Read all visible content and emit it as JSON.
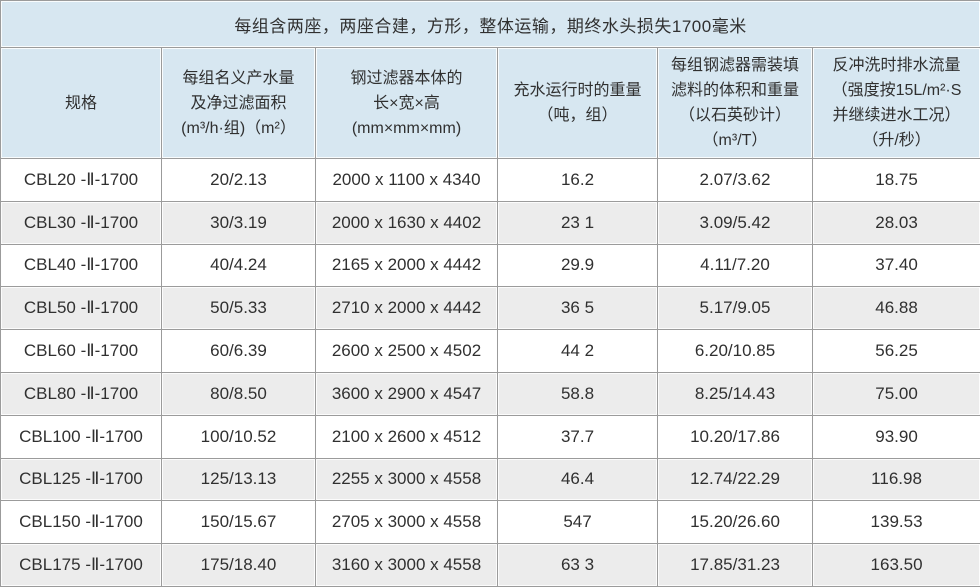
{
  "table": {
    "title": "每组含两座，两座合建，方形，整体运输，期终水头损失1700毫米",
    "columns": [
      {
        "id": "spec",
        "lines": [
          "规格"
        ]
      },
      {
        "id": "nominal-output-filter-area",
        "lines": [
          "每组名义产水量",
          "及净过滤面积",
          "(m³/h·组)（m²）"
        ]
      },
      {
        "id": "body-dimensions",
        "lines": [
          "钢过滤器本体的",
          "长×宽×高",
          "(mm×mm×mm)"
        ]
      },
      {
        "id": "water-filled-weight",
        "lines": [
          "充水运行时的重量",
          "（吨，组）"
        ]
      },
      {
        "id": "media-volume-weight",
        "lines": [
          "每组钢滤器需装填",
          "滤料的体积和重量",
          "（以石英砂计）",
          "（m³/T）"
        ]
      },
      {
        "id": "backwash-drain-flow",
        "lines": [
          "反冲洗时排水流量",
          "（强度按15L/m²·S",
          "并继续进水工况）",
          "（升/秒）"
        ]
      }
    ],
    "rows": [
      [
        "CBL20 -Ⅱ-1700",
        "20/2.13",
        "2000 x 1100 x 4340",
        "16.2",
        "2.07/3.62",
        "18.75"
      ],
      [
        "CBL30 -Ⅱ-1700",
        "30/3.19",
        "2000 x 1630 x 4402",
        "23 1",
        "3.09/5.42",
        "28.03"
      ],
      [
        "CBL40 -Ⅱ-1700",
        "40/4.24",
        "2165 x 2000 x 4442",
        "29.9",
        "4.11/7.20",
        "37.40"
      ],
      [
        "CBL50 -Ⅱ-1700",
        "50/5.33",
        "2710 x 2000 x 4442",
        "36 5",
        "5.17/9.05",
        "46.88"
      ],
      [
        "CBL60 -Ⅱ-1700",
        "60/6.39",
        "2600 x 2500 x 4502",
        "44 2",
        "6.20/10.85",
        "56.25"
      ],
      [
        "CBL80 -Ⅱ-1700",
        "80/8.50",
        "3600 x 2900 x 4547",
        "58.8",
        "8.25/14.43",
        "75.00"
      ],
      [
        "CBL100 -Ⅱ-1700",
        "100/10.52",
        "2100 x 2600 x 4512",
        "37.7",
        "10.20/17.86",
        "93.90"
      ],
      [
        "CBL125 -Ⅱ-1700",
        "125/13.13",
        "2255 x 3000 x 4558",
        "46.4",
        "12.74/22.29",
        "116.98"
      ],
      [
        "CBL150 -Ⅱ-1700",
        "150/15.67",
        "2705 x 3000 x 4558",
        "547",
        "15.20/26.60",
        "139.53"
      ],
      [
        "CBL175 -Ⅱ-1700",
        "175/18.40",
        "3160 x 3000 x 4558",
        "63 3",
        "17.85/31.23",
        "163.50"
      ]
    ]
  },
  "colors": {
    "header_bg": "#d7e7f1",
    "stripe_bg": "#ececec",
    "row_bg": "#ffffff",
    "border": "#9b9b9b",
    "text": "#303030"
  }
}
